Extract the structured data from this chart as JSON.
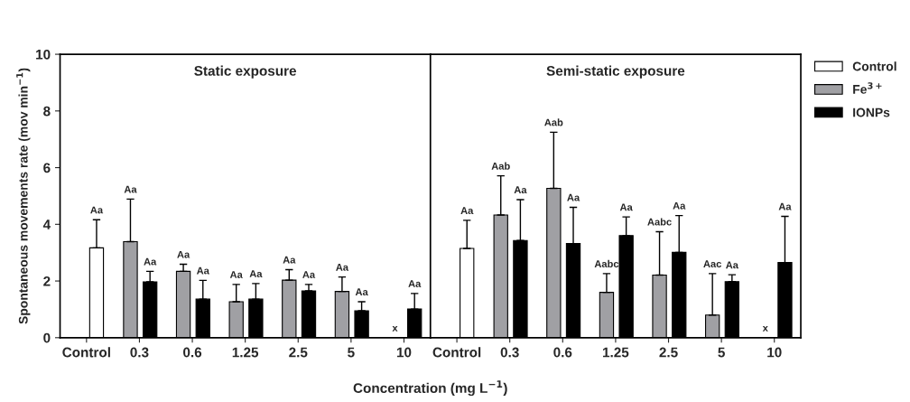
{
  "chart_data": [
    {
      "type": "bar",
      "title": "Static exposure",
      "xlabel": "Concentration (mg L$^{−1}$)",
      "ylabel": "Spontaneous movements rate (mov min$^{−1}$)",
      "categories": [
        "Control",
        "0.3",
        "0.6",
        "1.25",
        "2.5",
        "5",
        "10"
      ],
      "series": [
        {
          "name": "Control",
          "color": "#ffffff",
          "values": [
            3.17,
            null,
            null,
            null,
            null,
            null,
            null
          ],
          "errors": [
            [
              3.17,
              4.16
            ],
            null,
            null,
            null,
            null,
            null,
            null
          ]
        },
        {
          "name": "Fe$^{3+}$",
          "color": "#a0a0a4",
          "values": [
            null,
            3.39,
            2.34,
            1.27,
            2.03,
            1.63,
            null
          ],
          "errors": [
            null,
            [
              3.39,
              4.89
            ],
            [
              2.34,
              2.59
            ],
            [
              1.27,
              1.88
            ],
            [
              2.03,
              2.4
            ],
            [
              1.63,
              2.14
            ],
            null
          ],
          "value_labels": [
            null,
            null,
            null,
            null,
            null,
            null,
            "x"
          ]
        },
        {
          "name": "IONPs",
          "color": "#000000",
          "values": [
            null,
            1.97,
            1.36,
            1.36,
            1.65,
            0.95,
            1.01
          ],
          "errors": [
            null,
            [
              1.97,
              2.34
            ],
            [
              1.36,
              2.02
            ],
            [
              1.36,
              1.91
            ],
            [
              1.65,
              1.88
            ],
            [
              0.95,
              1.27
            ],
            [
              1.01,
              1.56
            ]
          ]
        }
      ],
      "annotations": [
        "Aa",
        "Aa",
        "Aa",
        "Aa",
        "Aa",
        "Aa",
        "Aa",
        "Aa",
        "Aa",
        "Aa",
        "Aa",
        "Aa"
      ],
      "ylim": [
        0,
        10
      ],
      "yticks": [
        0,
        2,
        4,
        6,
        8,
        10
      ],
      "legend": "top right"
    },
    {
      "type": "bar",
      "title": "Semi-static exposure",
      "categories": [
        "Control",
        "0.3",
        "0.6",
        "1.25",
        "2.5",
        "5",
        "10"
      ],
      "series": [
        {
          "color": "#ffffff",
          "values": [
            3.15,
            null,
            null,
            null,
            null,
            null,
            null
          ],
          "errors": [
            [
              3.15,
              4.14
            ],
            null,
            null,
            null,
            null,
            null,
            null
          ]
        },
        {
          "color": "#a0a0a4",
          "values": [
            null,
            4.33,
            5.27,
            1.6,
            2.21,
            0.8,
            null
          ],
          "errors": [
            null,
            [
              4.33,
              5.71
            ],
            [
              5.27,
              7.25
            ],
            [
              1.6,
              2.26
            ],
            [
              2.21,
              3.74
            ],
            [
              0.8,
              2.26
            ],
            null
          ],
          "value_labels": [
            null,
            null,
            null,
            null,
            null,
            null,
            "x"
          ]
        },
        {
          "color": "#000000",
          "values": [
            null,
            3.43,
            3.32,
            3.6,
            3.01,
            1.98,
            2.65
          ],
          "errors": [
            null,
            [
              3.43,
              4.87
            ],
            [
              3.32,
              4.6
            ],
            [
              3.6,
              4.26
            ],
            [
              3.01,
              4.31
            ],
            [
              1.98,
              2.22
            ],
            [
              2.65,
              4.28
            ]
          ]
        }
      ],
      "annotations": [
        "Aa",
        "Aab",
        "Aa",
        "Aab",
        "Aa",
        "Aabc",
        "Aa",
        "Aabc",
        "Aa",
        "Aac",
        "Aa",
        "Aa"
      ],
      "ylim": [
        0,
        10
      ],
      "yticks": [
        0,
        2,
        4,
        6,
        8,
        10
      ],
      "tick_labels": "x"
    }
  ]
}
